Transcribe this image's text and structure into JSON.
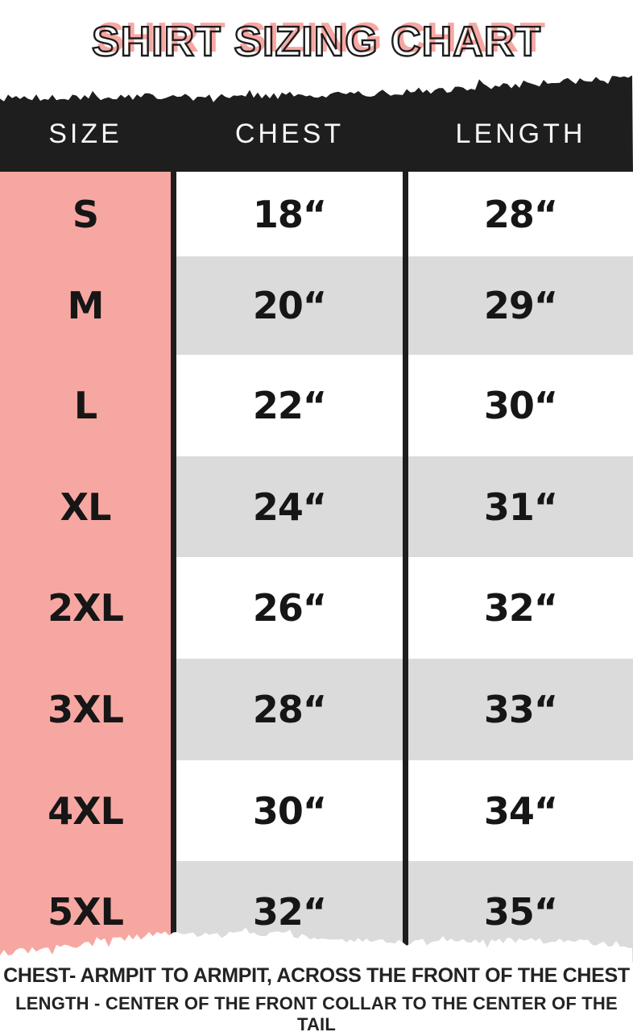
{
  "title": "SHIRT SIZING CHART",
  "colors": {
    "accent_pink": "#F7A7A2",
    "row_gray": "#DBDBDB",
    "band_black": "#1E1E1E",
    "text_black": "#161616"
  },
  "chart_data": {
    "type": "table",
    "title": "SHIRT SIZING CHART",
    "columns": [
      "SIZE",
      "CHEST",
      "LENGTH"
    ],
    "rows": [
      [
        "S",
        "18“",
        "28“"
      ],
      [
        "M",
        "20“",
        "29“"
      ],
      [
        "L",
        "22“",
        "30“"
      ],
      [
        "XL",
        "24“",
        "31“"
      ],
      [
        "2XL",
        "26“",
        "32“"
      ],
      [
        "3XL",
        "28“",
        "33“"
      ],
      [
        "4XL",
        "30“",
        "34“"
      ],
      [
        "5XL",
        "32“",
        "35“"
      ]
    ],
    "annotations": [
      "CHEST- ARMPIT TO ARMPIT, ACROSS THE FRONT OF THE CHEST",
      "LENGTH - CENTER OF THE FRONT COLLAR TO THE CENTER OF THE TAIL"
    ],
    "layout_hints": {
      "size_column_background": "#F7A7A2",
      "alternating_rows": [
        "#FFFFFF",
        "#DBDBDB"
      ],
      "header_band": "torn-paper black band",
      "bottom_edge": "torn-paper white tear"
    }
  }
}
